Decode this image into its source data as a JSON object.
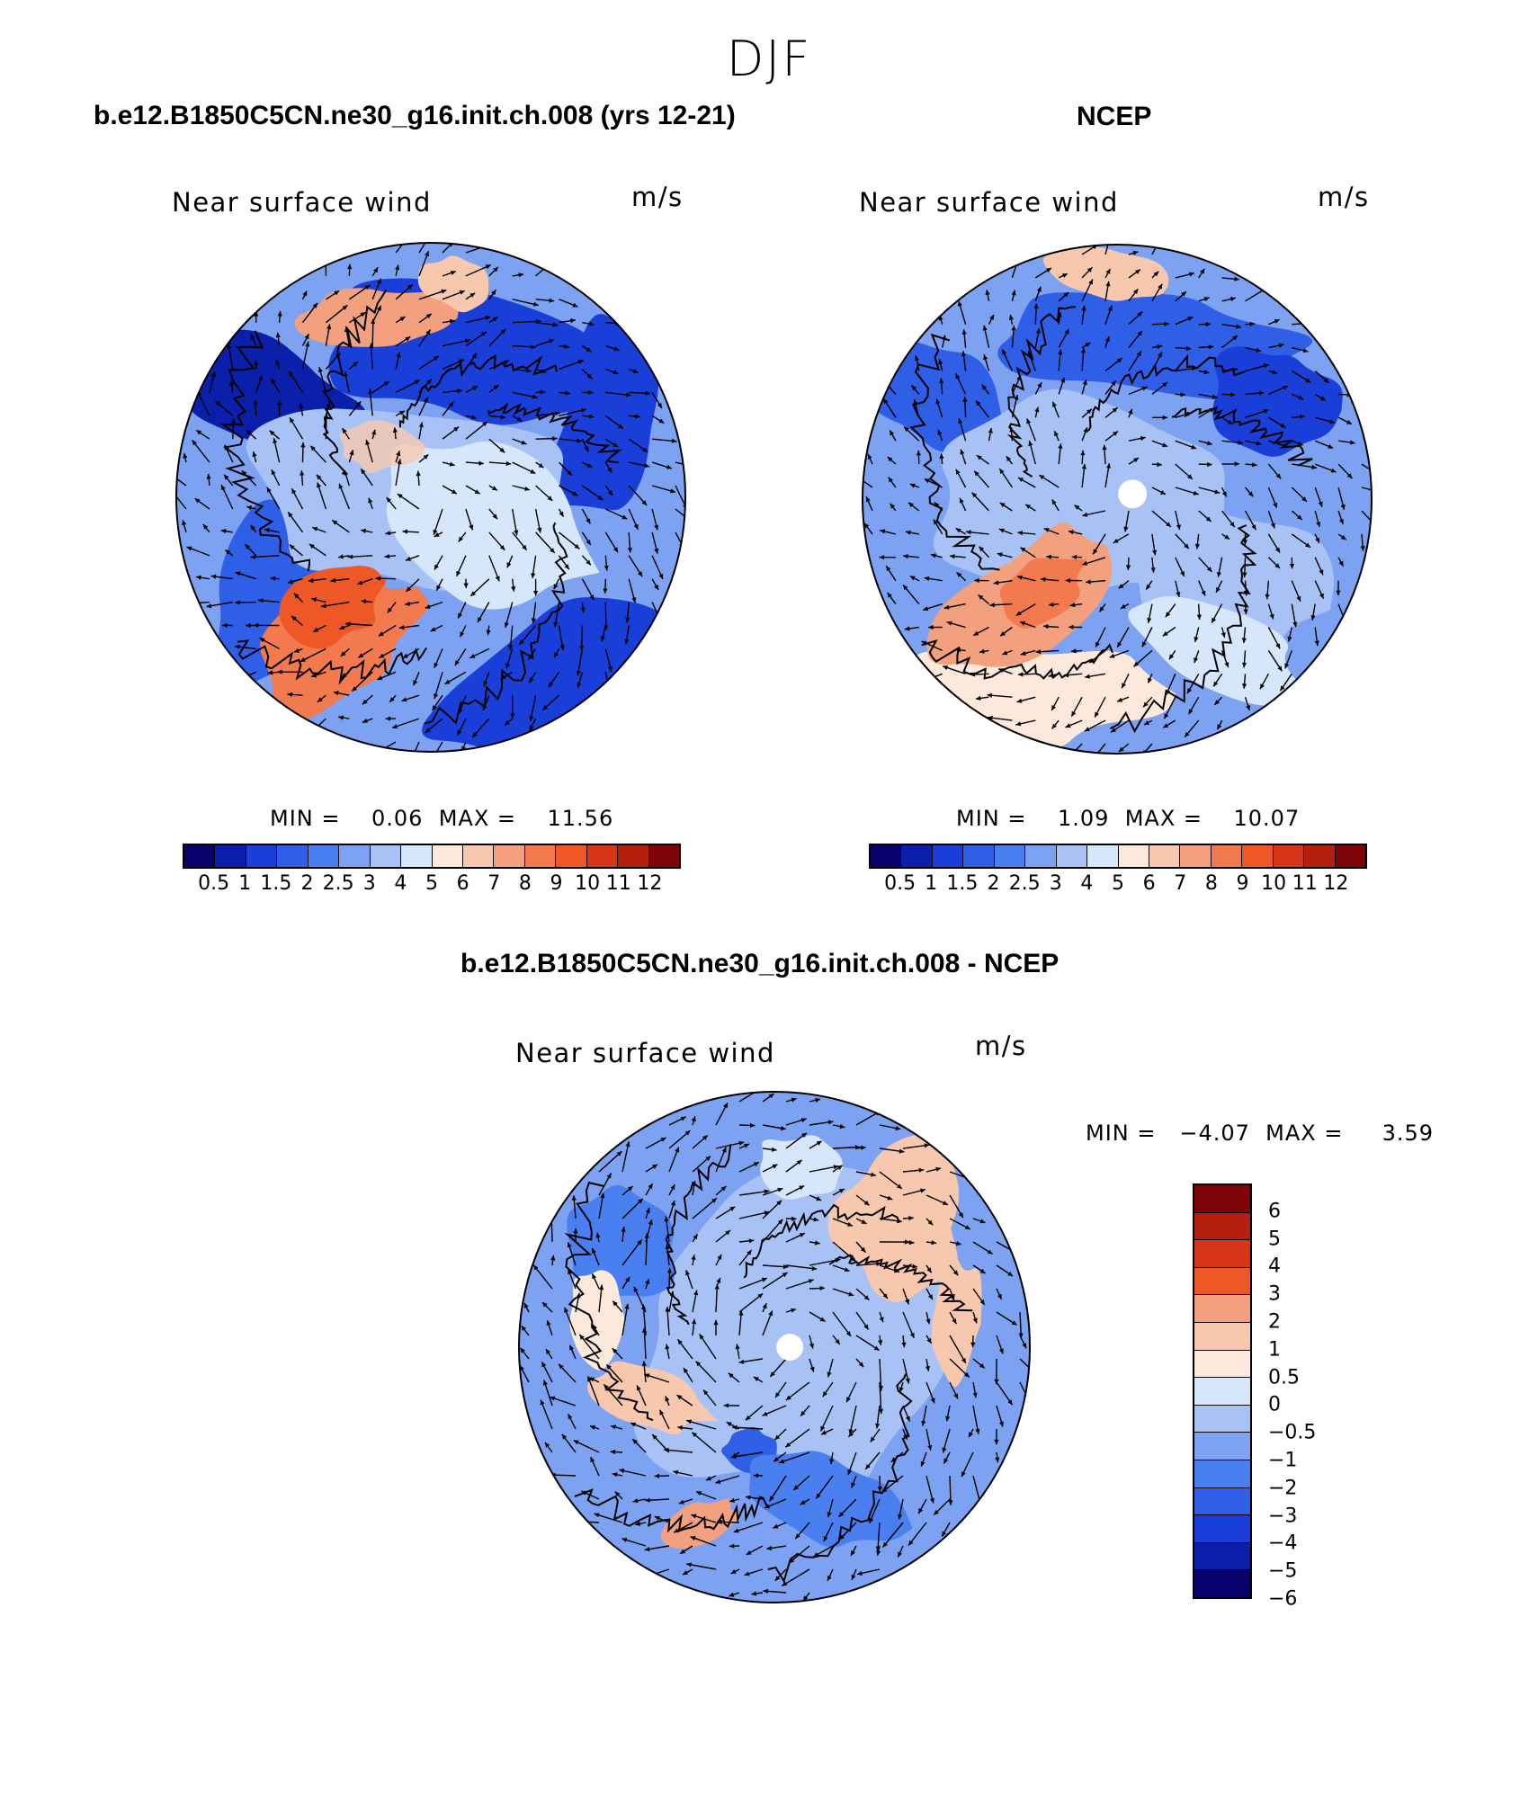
{
  "figure": {
    "title": "DJF"
  },
  "panels": [
    {
      "id": "model",
      "case_title": "b.e12.B1850C5CN.ne30_g16.init.ch.008 (yrs 12-21)",
      "variable": "Near surface wind",
      "units": "m/s",
      "minmax_text": "MIN =    0.06  MAX =    11.56"
    },
    {
      "id": "obs",
      "case_title": "NCEP",
      "variable": "Near surface wind",
      "units": "m/s",
      "minmax_text": "MIN =    1.09  MAX =    10.07"
    },
    {
      "id": "diff",
      "case_title": "b.e12.B1850C5CN.ne30_g16.init.ch.008 - NCEP",
      "variable": "Near surface wind",
      "units": "m/s",
      "minmax_text": "MIN =   −4.07  MAX =     3.59"
    }
  ],
  "colorbar_main": {
    "colors": [
      "#08006b",
      "#0a1faa",
      "#1a3fd8",
      "#2e5fe6",
      "#4a7ff0",
      "#7ea2f2",
      "#a8c2f6",
      "#d6e6fb",
      "#fde8dc",
      "#f7c8ae",
      "#f3a07f",
      "#f27a4e",
      "#ee5726",
      "#d8361a",
      "#b3200f",
      "#7d0509"
    ],
    "labels": [
      "0.5",
      "1",
      "1.5",
      "2",
      "2.5",
      "3",
      "4",
      "5",
      "6",
      "7",
      "8",
      "9",
      "10",
      "11",
      "12"
    ]
  },
  "colorbar_diff": {
    "colors": [
      "#7d0509",
      "#b3200f",
      "#d8361a",
      "#ee5726",
      "#f3a07f",
      "#f7c8ae",
      "#fde8dc",
      "#d6e6fb",
      "#a8c2f6",
      "#7ea2f2",
      "#4a7ff0",
      "#2e5fe6",
      "#1a3fd8",
      "#0a1faa",
      "#08006b"
    ],
    "labels": [
      "6",
      "5",
      "4",
      "3",
      "2",
      "1",
      "0.5",
      "0",
      "−0.5",
      "−1",
      "−2",
      "−3",
      "−4",
      "−5",
      "−6"
    ]
  },
  "chart_data": [
    {
      "type": "heatmap",
      "title": "b.e12.B1850C5CN.ne30_g16.init.ch.008 (yrs 12-21)",
      "subtitle": "Near surface wind",
      "units": "m/s",
      "min": 0.06,
      "max": 11.56,
      "levels": [
        0.5,
        1,
        1.5,
        2,
        2.5,
        3,
        4,
        5,
        6,
        7,
        8,
        9,
        10,
        11,
        12
      ]
    },
    {
      "type": "heatmap",
      "title": "NCEP",
      "subtitle": "Near surface wind",
      "units": "m/s",
      "min": 1.09,
      "max": 10.07,
      "levels": [
        0.5,
        1,
        1.5,
        2,
        2.5,
        3,
        4,
        5,
        6,
        7,
        8,
        9,
        10,
        11,
        12
      ]
    },
    {
      "type": "heatmap",
      "title": "b.e12.B1850C5CN.ne30_g16.init.ch.008 - NCEP",
      "subtitle": "Near surface wind",
      "units": "m/s",
      "min": -4.07,
      "max": 3.59,
      "levels": [
        -6,
        -5,
        -4,
        -3,
        -2,
        -1,
        -0.5,
        0,
        0.5,
        1,
        2,
        3,
        4,
        5,
        6
      ]
    }
  ]
}
